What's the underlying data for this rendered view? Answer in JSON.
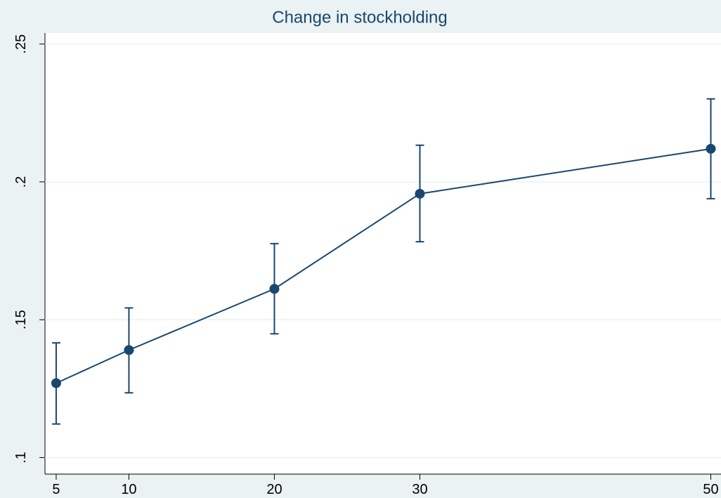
{
  "chart_data": {
    "type": "line",
    "title": "Change in stockholding",
    "x": [
      5,
      10,
      20,
      30,
      50
    ],
    "series": [
      {
        "color": "#1a476f",
        "values": [
          0.127,
          0.139,
          0.1612,
          0.1957,
          0.212
        ],
        "ci_low": [
          0.1122,
          0.1235,
          0.1449,
          0.1783,
          0.1939
        ],
        "ci_high": [
          0.1416,
          0.1543,
          0.1776,
          0.2133,
          0.2301
        ]
      }
    ],
    "xlim": [
      4.23,
      50.7
    ],
    "xticks": [
      5,
      10,
      20,
      30,
      50
    ],
    "ylim": [
      0.094,
      0.254
    ],
    "yticks": [
      {
        "value": 0.1,
        "label": ".1"
      },
      {
        "value": 0.15,
        "label": ".15"
      },
      {
        "value": 0.2,
        "label": ".2"
      },
      {
        "value": 0.25,
        "label": ".25"
      }
    ],
    "grid": true
  }
}
